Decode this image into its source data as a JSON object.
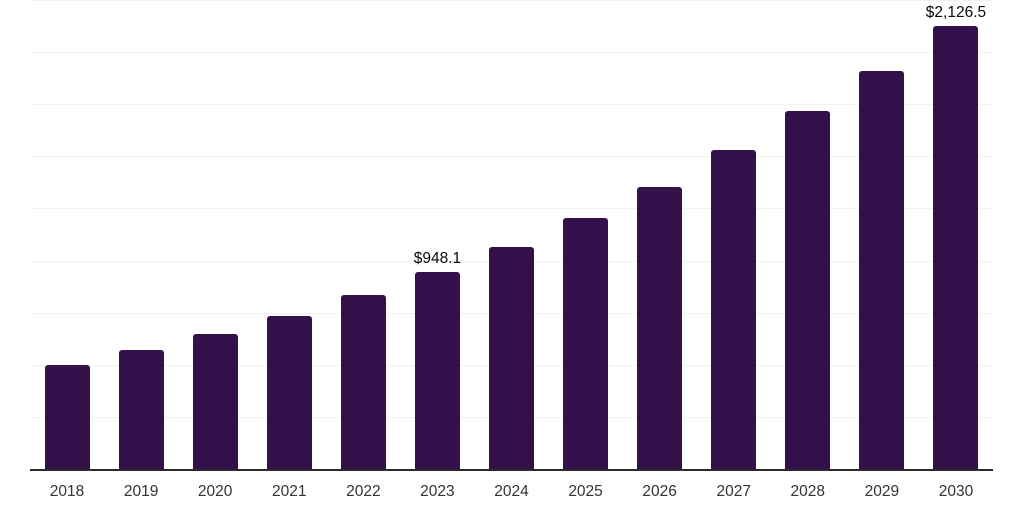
{
  "chart_data": {
    "type": "bar",
    "title": "",
    "xlabel": "",
    "ylabel": "",
    "categories": [
      "2018",
      "2019",
      "2020",
      "2021",
      "2022",
      "2023",
      "2024",
      "2025",
      "2026",
      "2027",
      "2028",
      "2029",
      "2030"
    ],
    "values": [
      505,
      574,
      652,
      737,
      836,
      948.1,
      1069,
      1205,
      1356,
      1530,
      1718,
      1911,
      2126.5
    ],
    "value_labels": [
      {
        "category": "2023",
        "text": "$948.1"
      },
      {
        "category": "2030",
        "text": "$2,126.5"
      }
    ],
    "ylim": [
      0,
      2250
    ],
    "gridline_interval": 250,
    "grid": true,
    "y_tick_labels_shown": false,
    "legend": "none"
  },
  "style": {
    "bar_color": "#35114B",
    "gridline_color": "#F1F1F1",
    "axis_line_color": "#2B2B2B",
    "value_label_color": "#0A0A0A",
    "tick_label_color": "#333333",
    "background_color": "#FFFFFF"
  }
}
